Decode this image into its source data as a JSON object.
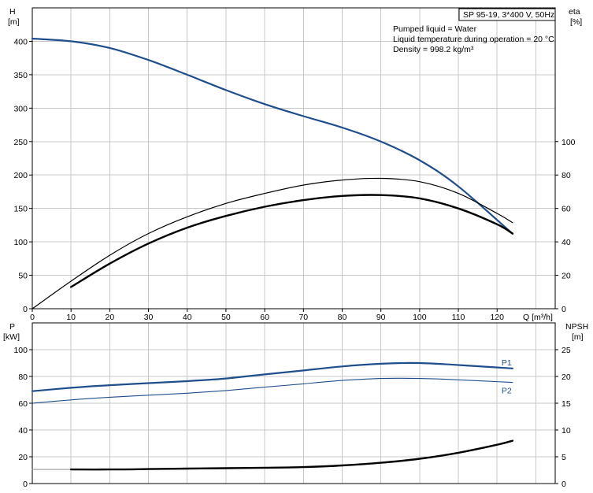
{
  "chart_data": [
    {
      "type": "line",
      "title_box": "SP 95-19, 3*400 V, 50Hz",
      "info_lines": [
        "Pumped liquid = Water",
        "Liquid temperature during operation = 20 °C",
        "Density = 998.2 kg/m³"
      ],
      "xlabel": "Q [m³/h]",
      "xlim": [
        0,
        135
      ],
      "x_ticks": [
        "0",
        "10",
        "20",
        "30",
        "40",
        "50",
        "60",
        "70",
        "80",
        "90",
        "100",
        "110",
        "120"
      ],
      "y_left": {
        "label_line1": "H",
        "label_line2": "[m]",
        "lim": [
          0,
          450
        ],
        "ticks": [
          "0",
          "50",
          "100",
          "150",
          "200",
          "250",
          "300",
          "350",
          "400"
        ]
      },
      "y_right": {
        "label_line1": "eta",
        "label_line2": "[%]",
        "lim": [
          0,
          180
        ],
        "ticks": [
          "0",
          "20",
          "40",
          "60",
          "80",
          "100"
        ]
      },
      "grid": true,
      "series": [
        {
          "axis": "left",
          "color": "#1f4e8c",
          "width": 2.2,
          "x": [
            0,
            10,
            20,
            30,
            40,
            50,
            60,
            70,
            80,
            90,
            100,
            110,
            124
          ],
          "y": [
            404,
            400,
            390,
            372,
            350,
            327,
            306,
            288,
            271,
            250,
            222,
            183,
            112
          ]
        },
        {
          "axis": "right",
          "color": "#000000",
          "width": 1.2,
          "x": [
            0,
            10,
            20,
            30,
            40,
            50,
            60,
            70,
            80,
            90,
            100,
            110,
            120,
            124
          ],
          "y": [
            0,
            16.5,
            32,
            45,
            55,
            63,
            69,
            74,
            77,
            78,
            76,
            69,
            57,
            51.5
          ]
        },
        {
          "axis": "right",
          "color": "#000000",
          "width": 2.4,
          "x": [
            10,
            20,
            30,
            40,
            50,
            60,
            70,
            80,
            90,
            100,
            110,
            120,
            124
          ],
          "y": [
            13,
            27,
            39,
            48.5,
            55.5,
            61,
            65,
            67.5,
            68,
            66,
            60,
            50.5,
            45
          ]
        }
      ]
    },
    {
      "type": "line",
      "xlim": [
        0,
        135
      ],
      "y_left": {
        "label_line1": "P",
        "label_line2": "[kW]",
        "lim": [
          0,
          120
        ],
        "ticks": [
          "0",
          "20",
          "40",
          "60",
          "80",
          "100"
        ]
      },
      "y_right": {
        "label_line1": "NPSH",
        "label_line2": "[m]",
        "lim": [
          0,
          30
        ],
        "ticks": [
          "0",
          "5",
          "10",
          "15",
          "20",
          "25"
        ]
      },
      "grid": true,
      "series": [
        {
          "name": "P1",
          "axis": "left",
          "color": "#1f4e8c",
          "width": 2.2,
          "x": [
            0,
            10,
            20,
            30,
            40,
            50,
            60,
            70,
            80,
            90,
            100,
            110,
            124
          ],
          "y": [
            69,
            71.5,
            73.5,
            75,
            76.5,
            78.5,
            81.5,
            84.5,
            87.5,
            89.5,
            90,
            88.5,
            86
          ]
        },
        {
          "name": "P2",
          "axis": "left",
          "color": "#1f4e8c",
          "width": 1.1,
          "x": [
            0,
            10,
            20,
            30,
            40,
            50,
            60,
            70,
            80,
            90,
            100,
            110,
            124
          ],
          "y": [
            60,
            62.5,
            64.5,
            66,
            67.5,
            69.5,
            72,
            74.5,
            77,
            78.5,
            78.5,
            77.5,
            75.5
          ]
        },
        {
          "axis": "left",
          "color": "#999999",
          "width": 1.1,
          "x": [
            0,
            10
          ],
          "y": [
            10.5,
            10.5
          ]
        },
        {
          "axis": "left",
          "color": "#000000",
          "width": 2.4,
          "x": [
            10,
            20,
            30,
            40,
            50,
            60,
            70,
            80,
            90,
            100,
            110,
            120,
            124
          ],
          "y": [
            10.5,
            10.5,
            10.8,
            11.2,
            11.5,
            11.8,
            12.3,
            13.5,
            15.5,
            18.5,
            23,
            29,
            32
          ]
        }
      ]
    }
  ]
}
